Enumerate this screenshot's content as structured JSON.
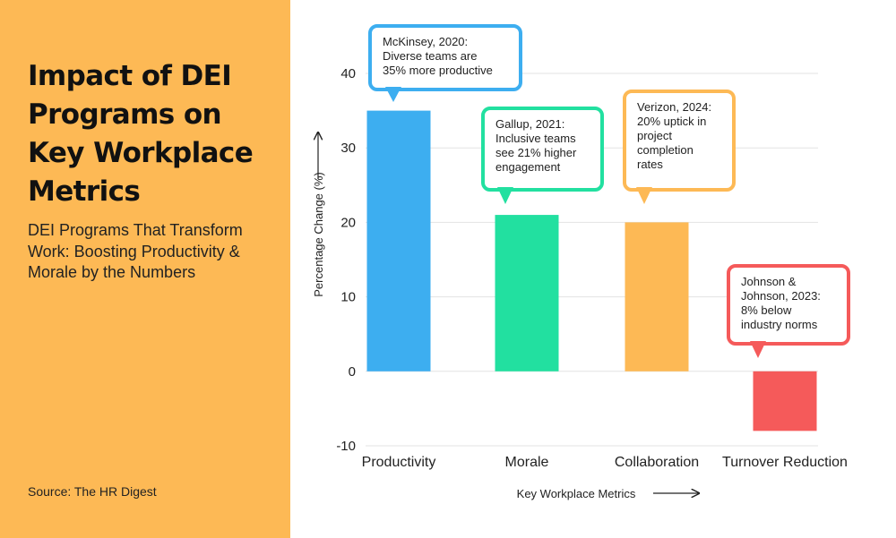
{
  "panel": {
    "title": "Impact of DEI Programs on Key Workplace Metrics",
    "subtitle": "DEI Programs That Transform Work: Boosting Productivity & Morale by the Numbers",
    "source": "Source: The HR Digest"
  },
  "colors": {
    "panel_bg": "#FDB955",
    "productivity": "#3DAEF0",
    "morale": "#22E0A0",
    "collaboration": "#FDB955",
    "turnover": "#F55A5A"
  },
  "chart_data": {
    "type": "bar",
    "categories": [
      "Productivity",
      "Morale",
      "Collaboration",
      "Turnover Reduction"
    ],
    "values": [
      35,
      21,
      20,
      -8
    ],
    "xlabel": "Key Workplace Metrics",
    "ylabel": "Percentage Change (%)",
    "ylim": [
      -10,
      40
    ],
    "yticks": [
      -10,
      0,
      10,
      20,
      30,
      40
    ],
    "grid": true,
    "annotations": [
      {
        "category": "Productivity",
        "lines": [
          "McKinsey, 2020:",
          "Diverse teams are",
          "35% more productive"
        ]
      },
      {
        "category": "Morale",
        "lines": [
          "Gallup, 2021:",
          "Inclusive teams",
          "see 21% higher",
          "engagement"
        ]
      },
      {
        "category": "Collaboration",
        "lines": [
          "Verizon, 2024:",
          "20% uptick in",
          "project",
          "completion",
          "rates"
        ]
      },
      {
        "category": "Turnover Reduction",
        "lines": [
          "Johnson &",
          "Johnson, 2023:",
          "8% below",
          "industry norms"
        ]
      }
    ]
  }
}
